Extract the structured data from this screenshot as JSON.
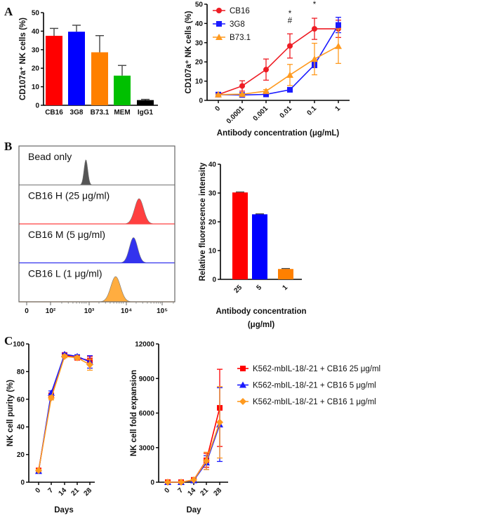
{
  "chart_data": [
    {
      "id": "A1",
      "panel_label": "A",
      "type": "bar",
      "categories": [
        "CB16",
        "3G8",
        "B73.1",
        "MEM",
        "IgG1"
      ],
      "values": [
        37.5,
        39.7,
        28.6,
        16.0,
        2.8
      ],
      "errors": [
        4.0,
        3.5,
        9.0,
        5.5,
        0.4
      ],
      "colors": [
        "#ff0000",
        "#0000ff",
        "#ff8000",
        "#00c000",
        "#000000"
      ],
      "ylabel": "CD107a⁺ NK cells (%)",
      "xlabel": "",
      "ylim": [
        0,
        50
      ],
      "yticks": [
        "0",
        "10",
        "20",
        "30",
        "40",
        "50"
      ]
    },
    {
      "id": "A2",
      "type": "line",
      "categories": [
        "0",
        "0.0001",
        "0.001",
        "0.01",
        "0.1",
        "1"
      ],
      "series": [
        {
          "name": "CB16",
          "color": "#ee1c24",
          "marker": "circle",
          "values": [
            3.0,
            7.5,
            16.0,
            28.3,
            37.2,
            37.2
          ],
          "errors": [
            0.5,
            2.7,
            5.5,
            6.3,
            5.5,
            4.5
          ]
        },
        {
          "name": "3G8",
          "color": "#1a1aff",
          "marker": "square",
          "values": [
            3.0,
            2.8,
            3.1,
            5.5,
            18.5,
            39.2
          ],
          "errors": [
            0.3,
            0.3,
            0.3,
            0.5,
            1.5,
            4.0
          ]
        },
        {
          "name": "B73.1",
          "color": "#ff9a1f",
          "marker": "triangle",
          "values": [
            3.0,
            3.2,
            4.8,
            13.2,
            21.5,
            28.2
          ],
          "errors": [
            0.3,
            0.3,
            0.8,
            5.5,
            8.2,
            9.0
          ]
        }
      ],
      "annotations": [
        {
          "x": "0.01",
          "text": "*"
        },
        {
          "x": "0.01",
          "text": "#"
        },
        {
          "x": "0.1",
          "text": "*"
        }
      ],
      "ylabel": "CD107a⁺ NK cells (%)",
      "xlabel": "Antibody concentration (μg/mL)",
      "ylim": [
        0,
        50
      ],
      "yticks": [
        "0",
        "10",
        "20",
        "30",
        "40",
        "50"
      ],
      "legend_position": "top-left"
    },
    {
      "id": "B1",
      "panel_label": "B",
      "type": "histogram",
      "rows": [
        {
          "label": "Bead only",
          "color": "#555555",
          "peak_log10": 2.95,
          "width_log10": 0.05
        },
        {
          "label": "CB16 H (25 μg/ml)",
          "color": "#ff4040",
          "peak_log10": 4.38,
          "width_log10": 0.12
        },
        {
          "label": "CB16 M (5 μg/ml)",
          "color": "#3333ee",
          "peak_log10": 4.23,
          "width_log10": 0.11
        },
        {
          "label": "CB16 L (1 μg/ml)",
          "color": "#ffad40",
          "peak_log10": 3.75,
          "width_log10": 0.13
        }
      ],
      "xticks": [
        "0",
        "10²",
        "10³",
        "10⁴",
        "10⁵"
      ]
    },
    {
      "id": "B2",
      "type": "bar",
      "categories": [
        "25",
        "5",
        "1"
      ],
      "values": [
        30.2,
        22.6,
        3.6
      ],
      "errors": [
        0.15,
        0.15,
        0.15
      ],
      "colors": [
        "#ff0000",
        "#0000ff",
        "#ff8000"
      ],
      "ylabel": "Relative fluorescence intensity",
      "xlabel": "Antibody concentration",
      "xlabel2": "(μg/ml)",
      "ylim": [
        0,
        40
      ],
      "yticks": [
        "0",
        "10",
        "20",
        "30",
        "40"
      ]
    },
    {
      "id": "C1",
      "panel_label": "C",
      "type": "line",
      "categories": [
        "0",
        "7",
        "14",
        "21",
        "28"
      ],
      "series": [
        {
          "name": "K562-mbIL-18/-21 + CB16 25 μg/ml",
          "color": "#ff0000",
          "marker": "square",
          "values": [
            8.5,
            62.5,
            92,
            90,
            88
          ],
          "errors": [
            0.8,
            2.0,
            1.0,
            1.5,
            3.0
          ]
        },
        {
          "name": "K562-mbIL-18/-21 + CB16 5 μg/ml",
          "color": "#1a1aff",
          "marker": "triangle",
          "values": [
            8.0,
            64.5,
            92.5,
            91,
            87
          ],
          "errors": [
            0.8,
            1.5,
            0.8,
            1.2,
            4.5
          ]
        },
        {
          "name": "K562-mbIL-18/-21 + CB16 1 μg/ml",
          "color": "#ff9a1f",
          "marker": "diamond",
          "values": [
            8.5,
            61,
            91,
            90,
            85
          ],
          "errors": [
            0.8,
            1.5,
            1.0,
            1.2,
            4.0
          ]
        }
      ],
      "ylabel": "NK cell purity (%)",
      "xlabel": "Days",
      "ylim": [
        0,
        100
      ],
      "yticks": [
        "0",
        "20",
        "40",
        "60",
        "80",
        "100"
      ]
    },
    {
      "id": "C2",
      "type": "line",
      "categories": [
        "0",
        "7",
        "14",
        "21",
        "28"
      ],
      "series": [
        {
          "name": "K562-mbIL-18/-21 + CB16 25 μg/ml",
          "color": "#ff0000",
          "marker": "square",
          "values": [
            0,
            0,
            200,
            1900,
            6450
          ],
          "errors": [
            20,
            30,
            60,
            600,
            3350
          ]
        },
        {
          "name": "K562-mbIL-18/-21 + CB16 5 μg/ml",
          "color": "#1a1aff",
          "marker": "triangle",
          "values": [
            0,
            0,
            150,
            1700,
            5000
          ],
          "errors": [
            20,
            30,
            50,
            600,
            3200
          ]
        },
        {
          "name": "K562-mbIL-18/-21 + CB16 1 μg/ml",
          "color": "#ff9a1f",
          "marker": "diamond",
          "values": [
            0,
            0,
            200,
            1850,
            5200
          ],
          "errors": [
            20,
            30,
            60,
            750,
            3100
          ]
        }
      ],
      "ylabel": "NK cell fold expansion",
      "xlabel": "Day",
      "ylim": [
        0,
        12000
      ],
      "yticks": [
        "0",
        "3000",
        "6000",
        "9000",
        "12000"
      ],
      "legend_position": "right"
    }
  ]
}
